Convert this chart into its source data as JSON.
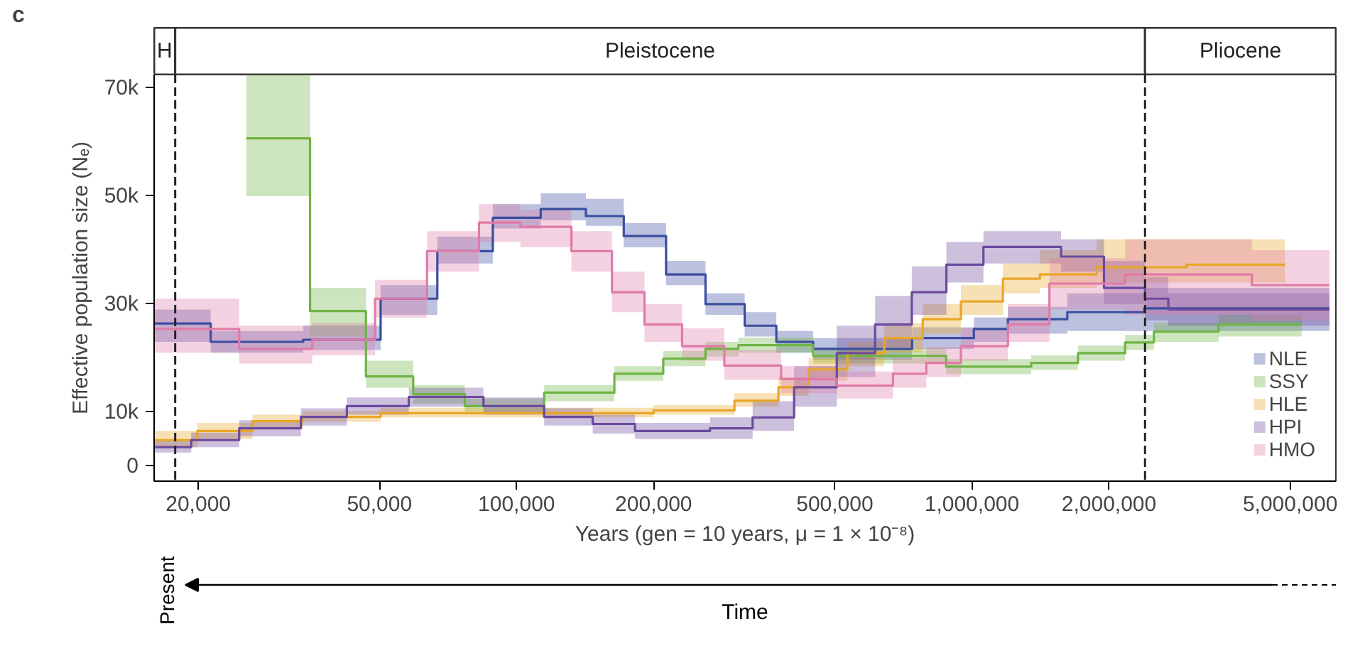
{
  "chart_data": {
    "type": "step",
    "title": "c",
    "xlabel": "Years (gen = 10 years, μ = 1 × 10⁻⁸)",
    "ylabel": "Effective population size (Nₑ)",
    "log": "x",
    "xlim": [
      16000,
      6300000
    ],
    "ylim": [
      -2800,
      72500
    ],
    "xticks": [
      {
        "value": 20000,
        "label": "20,000"
      },
      {
        "value": 50000,
        "label": "50,000"
      },
      {
        "value": 100000,
        "label": "100,000"
      },
      {
        "value": 200000,
        "label": "200,000"
      },
      {
        "value": 500000,
        "label": "500,000"
      },
      {
        "value": 1000000,
        "label": "1,000,000"
      },
      {
        "value": 2000000,
        "label": "2,000,000"
      },
      {
        "value": 5000000,
        "label": "5,000,000"
      }
    ],
    "yticks": [
      0,
      {
        "value": 10000,
        "label": "10k"
      },
      {
        "value": 30000,
        "label": "30k"
      },
      {
        "value": 50000,
        "label": "50k"
      },
      {
        "value": 70000,
        "label": "70k"
      }
    ],
    "grid": false,
    "legend": "bottom right",
    "marker": "none",
    "line_style": "solid",
    "series": [
      {
        "name": "NLE",
        "color": "#3b4ea0",
        "x": [
          16000,
          21300,
          34000,
          50300,
          67000,
          88700,
          113000,
          142000,
          172000,
          213000,
          260000,
          317000,
          372000,
          448000,
          739000,
          1010000,
          1200000,
          1620000,
          2390000,
          6100000
        ],
        "values": [
          26400,
          23000,
          23400,
          31000,
          39800,
          46000,
          47600,
          46300,
          42600,
          35500,
          30000,
          26000,
          23000,
          21700,
          23700,
          25400,
          27200,
          28500,
          29200,
          29200
        ],
        "lower": [
          23000,
          21000,
          21500,
          28000,
          37500,
          44000,
          45500,
          44500,
          40500,
          33500,
          28000,
          24000,
          21000,
          19700,
          21700,
          23000,
          24500,
          25000,
          25000,
          25000
        ],
        "upper": [
          29000,
          25000,
          26000,
          33500,
          42500,
          48500,
          50500,
          49500,
          45000,
          38000,
          32000,
          28500,
          25000,
          23700,
          25700,
          27500,
          29500,
          32000,
          33000,
          33000
        ]
      },
      {
        "name": "SSY",
        "color": "#6fb444",
        "x": [
          25500,
          35200,
          46700,
          59300,
          77000,
          115000,
          164000,
          210000,
          260000,
          307000,
          448000,
          878000,
          1350000,
          1710000,
          2170000,
          2510000,
          3480000,
          5300000
        ],
        "values": [
          60700,
          28700,
          16600,
          13300,
          11100,
          13600,
          17100,
          19900,
          21700,
          22400,
          20400,
          18400,
          19100,
          20900,
          22900,
          24900,
          26200,
          26200
        ],
        "lower": [
          50000,
          24000,
          14500,
          11500,
          10000,
          12000,
          15800,
          18500,
          20300,
          21000,
          19000,
          17000,
          17800,
          19500,
          21500,
          23000,
          24000,
          24000
        ],
        "upper": [
          72500,
          33000,
          19500,
          15000,
          12500,
          15000,
          18500,
          21300,
          23000,
          23800,
          21800,
          19800,
          20500,
          22300,
          24300,
          26500,
          28000,
          28000
        ]
      },
      {
        "name": "HLE",
        "color": "#e8a628",
        "x": [
          16000,
          19900,
          26300,
          34000,
          50300,
          200000,
          301000,
          376000,
          438000,
          533000,
          642000,
          780000,
          946000,
          1170000,
          1410000,
          1880000,
          2960000,
          4870000
        ],
        "values": [
          4800,
          6500,
          8300,
          9100,
          9800,
          10300,
          12100,
          14600,
          17900,
          20900,
          23700,
          27200,
          30500,
          34700,
          35500,
          36800,
          37300,
          37300
        ],
        "lower": [
          3500,
          5000,
          7000,
          8200,
          9000,
          9500,
          11000,
          13000,
          15800,
          18500,
          21000,
          24500,
          28000,
          32000,
          33000,
          34000,
          34000,
          34000
        ],
        "upper": [
          6500,
          8000,
          9500,
          10200,
          10800,
          11300,
          13500,
          16500,
          20000,
          23000,
          26500,
          30000,
          33500,
          37500,
          40000,
          42000,
          42000,
          42000
        ]
      },
      {
        "name": "HPI",
        "color": "#6c4a9e",
        "x": [
          16000,
          19300,
          24600,
          33600,
          42400,
          58000,
          84600,
          115000,
          147000,
          182000,
          266000,
          330000,
          407000,
          505000,
          613000,
          738000,
          879000,
          1060000,
          1570000,
          1950000,
          2400000,
          2700000,
          6100000
        ],
        "values": [
          3500,
          4800,
          7000,
          9100,
          11100,
          12800,
          11100,
          9100,
          7800,
          6500,
          7000,
          9000,
          14600,
          20900,
          26200,
          32200,
          37300,
          40600,
          38800,
          33000,
          31000,
          29000,
          29000
        ],
        "lower": [
          2500,
          3500,
          5500,
          7500,
          9500,
          11000,
          9500,
          7500,
          6000,
          5000,
          5000,
          6500,
          11000,
          16500,
          22000,
          28000,
          34000,
          37500,
          36000,
          30000,
          27000,
          26000,
          26000
        ],
        "upper": [
          4800,
          6200,
          8500,
          10700,
          12700,
          14500,
          12700,
          10700,
          9500,
          8000,
          9000,
          12000,
          18500,
          26000,
          31500,
          37000,
          41500,
          43500,
          42000,
          38000,
          35000,
          32000,
          32000
        ]
      },
      {
        "name": "HMO",
        "color": "#e07aa8",
        "x": [
          16000,
          24600,
          35600,
          48900,
          63600,
          82700,
          102000,
          132000,
          162000,
          191000,
          231000,
          286000,
          381000,
          505000,
          671000,
          794000,
          946000,
          1200000,
          1480000,
          2170000,
          4120000,
          6100000
        ],
        "values": [
          25400,
          21700,
          23400,
          31000,
          39800,
          45100,
          44300,
          39800,
          32200,
          26200,
          22200,
          18600,
          16100,
          14900,
          17100,
          19100,
          22200,
          26200,
          33800,
          35500,
          33500,
          33500
        ],
        "lower": [
          21000,
          19000,
          20500,
          27500,
          36000,
          41500,
          40500,
          36000,
          28500,
          23000,
          19500,
          16000,
          13500,
          12500,
          14500,
          16500,
          19500,
          23000,
          29000,
          28000,
          27000,
          27000
        ],
        "upper": [
          31000,
          26000,
          26500,
          34500,
          43500,
          48500,
          47500,
          43500,
          36000,
          30000,
          25500,
          21500,
          18500,
          17500,
          20000,
          22000,
          25500,
          30000,
          38500,
          42000,
          40000,
          40000
        ]
      }
    ],
    "ref_lines": [
      {
        "axis": "x",
        "value": 17800,
        "line_style": "dashed"
      },
      {
        "axis": "x",
        "value": 2400000,
        "line_style": "dashed"
      }
    ],
    "annotations": [
      "H",
      "Pleistocene",
      "Pliocene",
      "Present",
      "Time"
    ]
  }
}
